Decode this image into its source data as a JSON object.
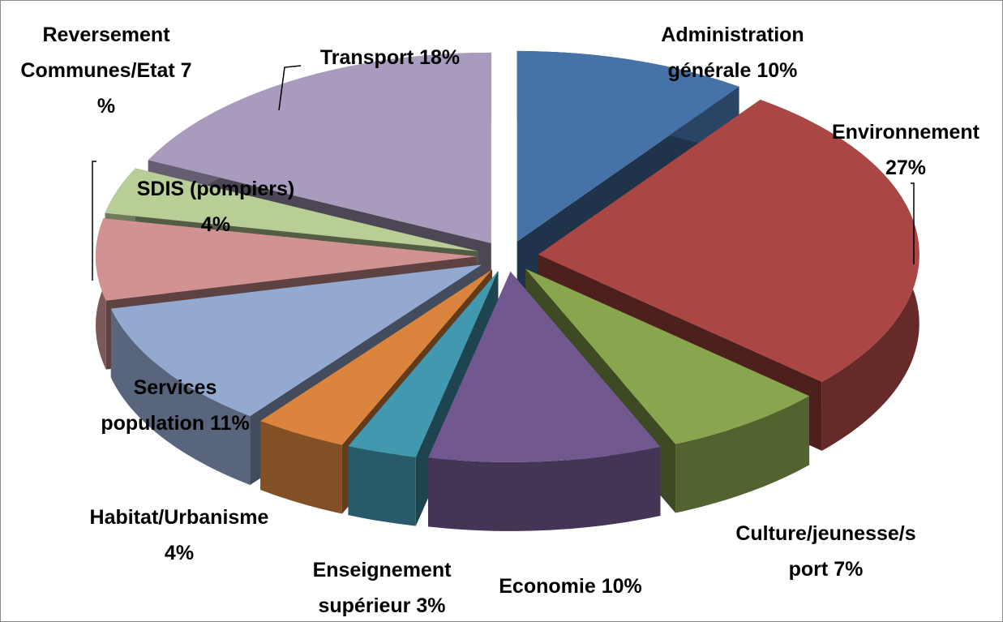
{
  "chart_data": {
    "type": "pie3d",
    "categories": [
      "Administration générale",
      "Environnement",
      "Culture/jeunesse/sport",
      "Economie",
      "Enseignement supérieur",
      "Habitat/Urbanisme",
      "Services population",
      "Reversement Communes/Etat",
      "SDIS (pompiers)",
      "Transport"
    ],
    "values": [
      10,
      27,
      7,
      10,
      3,
      4,
      11,
      7,
      4,
      18
    ],
    "value_labels": [
      "10%",
      "27%",
      "7%",
      "10%",
      "3%",
      "4%",
      "11%",
      "7 %",
      "4%",
      "18%"
    ],
    "colors": [
      "#4572a7",
      "#aa4643",
      "#89a54e",
      "#71588f",
      "#4198af",
      "#db843d",
      "#93a9cf",
      "#d19392",
      "#b9cd96",
      "#a99bbd"
    ]
  }
}
